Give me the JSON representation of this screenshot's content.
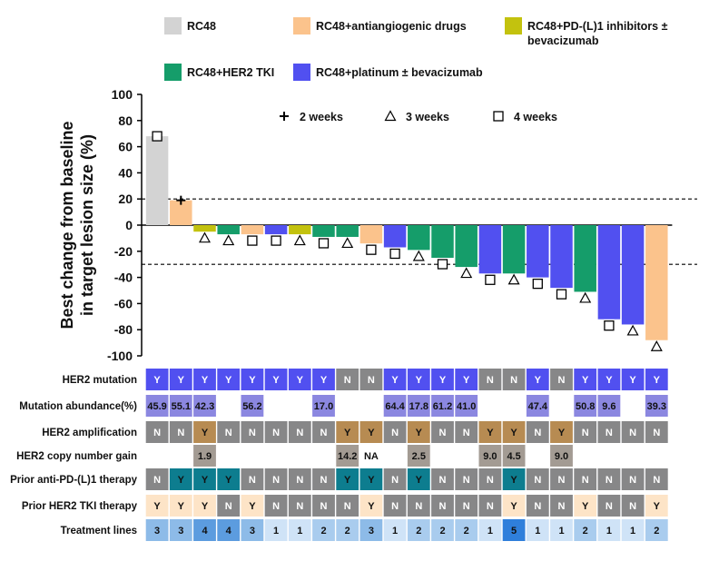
{
  "chart_data": {
    "type": "bar",
    "title": "",
    "xlabel": "",
    "ylabel": "Best change from baseline in target lesion size (%)",
    "ylabel_lines": [
      "Best change from baseline",
      "in target lesion size (%)"
    ],
    "ylim": [
      -100,
      100
    ],
    "yticks": [
      100,
      80,
      60,
      40,
      20,
      0,
      -20,
      -40,
      -60,
      -80,
      -100
    ],
    "reference_lines": [
      20,
      -30
    ],
    "legend_position": "top",
    "groups": [
      {
        "key": "rc48",
        "name_lines": [
          "RC48"
        ],
        "color": "#d3d3d3"
      },
      {
        "key": "anti",
        "name_lines": [
          "RC48+antiangiogenic drugs"
        ],
        "color": "#fbc38c"
      },
      {
        "key": "pdl1",
        "name_lines": [
          "RC48+PD-(L)1 inhibitors ±",
          "bevacizumab"
        ],
        "color": "#c3c20e"
      },
      {
        "key": "tki",
        "name_lines": [
          "RC48+HER2 TKI"
        ],
        "color": "#159d6a"
      },
      {
        "key": "plat",
        "name_lines": [
          "RC48+platinum ± bevacizumab"
        ],
        "color": "#5150f0"
      }
    ],
    "marker_legend": [
      {
        "symbol": "plus",
        "label": "2 weeks"
      },
      {
        "symbol": "triangle",
        "label": "3 weeks"
      },
      {
        "symbol": "square",
        "label": "4 weeks"
      }
    ],
    "bars": [
      {
        "value": 68,
        "group": "rc48",
        "marker": "square"
      },
      {
        "value": 19,
        "group": "anti",
        "marker": "plus"
      },
      {
        "value": -5,
        "group": "pdl1",
        "marker": "triangle"
      },
      {
        "value": -7,
        "group": "tki",
        "marker": "triangle"
      },
      {
        "value": -7,
        "group": "anti",
        "marker": "square"
      },
      {
        "value": -7,
        "group": "plat",
        "marker": "square"
      },
      {
        "value": -7,
        "group": "pdl1",
        "marker": "triangle"
      },
      {
        "value": -9,
        "group": "tki",
        "marker": "square"
      },
      {
        "value": -9,
        "group": "tki",
        "marker": "triangle"
      },
      {
        "value": -14,
        "group": "anti",
        "marker": "square"
      },
      {
        "value": -17,
        "group": "plat",
        "marker": "square"
      },
      {
        "value": -19,
        "group": "tki",
        "marker": "triangle"
      },
      {
        "value": -25,
        "group": "tki",
        "marker": "square"
      },
      {
        "value": -32,
        "group": "tki",
        "marker": "triangle"
      },
      {
        "value": -37,
        "group": "plat",
        "marker": "square"
      },
      {
        "value": -37,
        "group": "tki",
        "marker": "triangle"
      },
      {
        "value": -40,
        "group": "plat",
        "marker": "square"
      },
      {
        "value": -48,
        "group": "plat",
        "marker": "square"
      },
      {
        "value": -51,
        "group": "tki",
        "marker": "triangle"
      },
      {
        "value": -72,
        "group": "plat",
        "marker": "square"
      },
      {
        "value": -76,
        "group": "plat",
        "marker": "triangle"
      },
      {
        "value": -88,
        "group": "anti",
        "marker": "triangle"
      }
    ],
    "table": {
      "rows": [
        {
          "label": "HER2 mutation",
          "type": "mut",
          "values": [
            "Y",
            "Y",
            "Y",
            "Y",
            "Y",
            "Y",
            "Y",
            "Y",
            "N",
            "N",
            "Y",
            "Y",
            "Y",
            "Y",
            "N",
            "N",
            "Y",
            "N",
            "Y",
            "Y",
            "Y",
            "Y"
          ]
        },
        {
          "label": "Mutation abundance(%)",
          "type": "abund",
          "values": [
            "45.9",
            "55.1",
            "42.3",
            "",
            "56.2",
            "",
            "",
            "17.0",
            "",
            "",
            "64.4",
            "17.8",
            "61.2",
            "41.0",
            "",
            "",
            "47.4",
            "",
            "50.8",
            "9.6",
            "",
            "39.3"
          ]
        },
        {
          "label": "HER2 amplification",
          "type": "amp",
          "values": [
            "N",
            "N",
            "Y",
            "N",
            "N",
            "N",
            "N",
            "N",
            "Y",
            "Y",
            "N",
            "Y",
            "N",
            "N",
            "Y",
            "Y",
            "N",
            "Y",
            "N",
            "N",
            "N",
            "N"
          ]
        },
        {
          "label": "HER2 copy number gain",
          "type": "cn",
          "values": [
            "",
            "",
            "1.9",
            "",
            "",
            "",
            "",
            "",
            "14.2",
            "NA",
            "",
            "2.5",
            "",
            "",
            "9.0",
            "4.5",
            "",
            "9.0",
            "",
            "",
            "",
            ""
          ]
        },
        {
          "label": "Prior anti-PD-(L)1 therapy",
          "type": "pd1",
          "values": [
            "N",
            "Y",
            "Y",
            "Y",
            "N",
            "N",
            "N",
            "N",
            "Y",
            "Y",
            "N",
            "Y",
            "N",
            "N",
            "N",
            "Y",
            "N",
            "N",
            "N",
            "N",
            "N",
            "N"
          ]
        },
        {
          "label": "Prior HER2 TKI  therapy",
          "type": "tkiprior",
          "values": [
            "Y",
            "Y",
            "Y",
            "N",
            "Y",
            "N",
            "N",
            "N",
            "N",
            "Y",
            "N",
            "N",
            "N",
            "N",
            "N",
            "Y",
            "N",
            "N",
            "Y",
            "N",
            "N",
            "Y"
          ]
        },
        {
          "label": "Treatment lines",
          "type": "lines",
          "values": [
            "3",
            "3",
            "4",
            "4",
            "3",
            "1",
            "1",
            "2",
            "2",
            "3",
            "1",
            "2",
            "2",
            "2",
            "1",
            "5",
            "1",
            "1",
            "2",
            "1",
            "1",
            "2"
          ]
        }
      ]
    }
  }
}
